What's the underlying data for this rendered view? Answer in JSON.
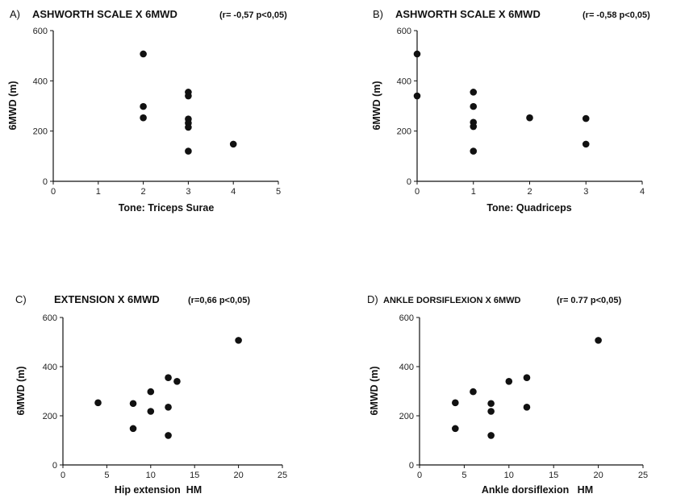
{
  "chart_data": [
    {
      "type": "scatter",
      "panel_label": "A)",
      "title": "ASHWORTH SCALE X 6MWD",
      "stats": "(r= -0,57 p<0,05)",
      "xlabel": "Tone: Triceps Surae",
      "ylabel": "6MWD (m)",
      "xlim": [
        0,
        5
      ],
      "ylim": [
        0,
        600
      ],
      "x_ticks": [
        "0",
        "1",
        "2",
        "3",
        "4",
        "5"
      ],
      "y_ticks": [
        "0",
        "200",
        "400",
        "600"
      ],
      "points": [
        {
          "x": 2,
          "y": 507
        },
        {
          "x": 2,
          "y": 298
        },
        {
          "x": 2,
          "y": 253
        },
        {
          "x": 3,
          "y": 355
        },
        {
          "x": 3,
          "y": 340
        },
        {
          "x": 3,
          "y": 248
        },
        {
          "x": 3,
          "y": 232
        },
        {
          "x": 3,
          "y": 215
        },
        {
          "x": 3,
          "y": 120
        },
        {
          "x": 4,
          "y": 148
        }
      ]
    },
    {
      "type": "scatter",
      "panel_label": "B)",
      "title": "ASHWORTH SCALE X 6MWD",
      "stats": "(r= -0,58 p<0,05)",
      "xlabel": "Tone: Quadriceps",
      "ylabel": "6MWD (m)",
      "xlim": [
        0,
        4
      ],
      "ylim": [
        0,
        600
      ],
      "x_ticks": [
        "0",
        "1",
        "2",
        "3",
        "4"
      ],
      "y_ticks": [
        "0",
        "200",
        "400",
        "600"
      ],
      "points": [
        {
          "x": 0,
          "y": 507
        },
        {
          "x": 0,
          "y": 340
        },
        {
          "x": 1,
          "y": 355
        },
        {
          "x": 1,
          "y": 298
        },
        {
          "x": 1,
          "y": 235
        },
        {
          "x": 1,
          "y": 218
        },
        {
          "x": 1,
          "y": 120
        },
        {
          "x": 2,
          "y": 253
        },
        {
          "x": 3,
          "y": 250
        },
        {
          "x": 3,
          "y": 148
        }
      ]
    },
    {
      "type": "scatter",
      "panel_label": "C)",
      "title": "EXTENSION X 6MWD",
      "stats": "(r=0,66 p<0,05)",
      "xlabel": "Hip extension  HM",
      "ylabel": "6MWD (m)",
      "xlim": [
        0,
        25
      ],
      "ylim": [
        0,
        600
      ],
      "x_ticks": [
        "0",
        "5",
        "10",
        "15",
        "20",
        "25"
      ],
      "y_ticks": [
        "0",
        "200",
        "400",
        "600"
      ],
      "points": [
        {
          "x": 4,
          "y": 253
        },
        {
          "x": 8,
          "y": 250
        },
        {
          "x": 8,
          "y": 148
        },
        {
          "x": 10,
          "y": 298
        },
        {
          "x": 10,
          "y": 218
        },
        {
          "x": 12,
          "y": 355
        },
        {
          "x": 12,
          "y": 235
        },
        {
          "x": 12,
          "y": 120
        },
        {
          "x": 13,
          "y": 340
        },
        {
          "x": 20,
          "y": 507
        }
      ]
    },
    {
      "type": "scatter",
      "panel_label": "D)",
      "title": "ANKLE DORSIFLEXION X 6MWD",
      "stats": "(r= 0.77 p<0,05)",
      "xlabel": "Ankle dorsiflexion   HM",
      "ylabel": "6MWD (m)",
      "xlim": [
        0,
        25
      ],
      "ylim": [
        0,
        600
      ],
      "x_ticks": [
        "0",
        "5",
        "10",
        "15",
        "20",
        "25"
      ],
      "y_ticks": [
        "0",
        "200",
        "400",
        "600"
      ],
      "points": [
        {
          "x": 4,
          "y": 253
        },
        {
          "x": 4,
          "y": 148
        },
        {
          "x": 6,
          "y": 298
        },
        {
          "x": 8,
          "y": 250
        },
        {
          "x": 8,
          "y": 218
        },
        {
          "x": 8,
          "y": 120
        },
        {
          "x": 10,
          "y": 340
        },
        {
          "x": 12,
          "y": 355
        },
        {
          "x": 12,
          "y": 235
        },
        {
          "x": 20,
          "y": 507
        }
      ]
    }
  ]
}
